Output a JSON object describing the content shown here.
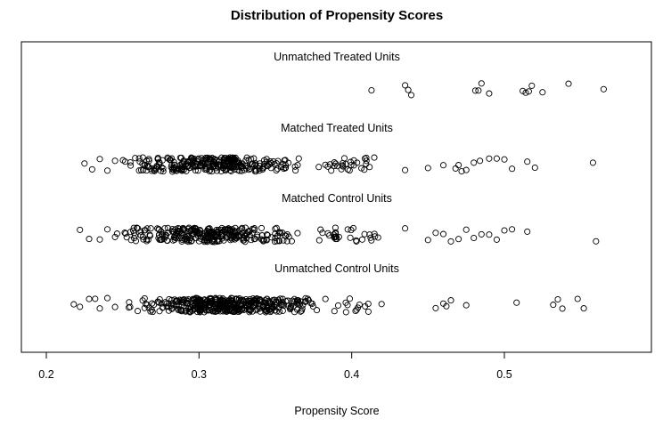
{
  "chart_data": {
    "type": "scatter",
    "title": "Distribution of Propensity Scores",
    "xlabel": "Propensity Score",
    "ylabel": "",
    "xlim": [
      0.18,
      0.6
    ],
    "x_ticks": [
      "0.2",
      "0.3",
      "0.4",
      "0.5"
    ],
    "grid": false,
    "legend": "none",
    "point_style": "open-circle",
    "series": [
      {
        "name": "Unmatched Treated Units",
        "values": [
          0.413,
          0.435,
          0.437,
          0.439,
          0.481,
          0.483,
          0.485,
          0.49,
          0.512,
          0.514,
          0.516,
          0.518,
          0.525,
          0.542,
          0.565
        ]
      },
      {
        "name": "Matched Treated Units",
        "clusters": [
          {
            "min": 0.245,
            "max": 0.37,
            "count": 290
          },
          {
            "min": 0.37,
            "max": 0.42,
            "count": 30
          }
        ],
        "values": [
          0.225,
          0.23,
          0.235,
          0.24,
          0.245,
          0.435,
          0.45,
          0.46,
          0.468,
          0.47,
          0.472,
          0.475,
          0.48,
          0.484,
          0.49,
          0.495,
          0.5,
          0.505,
          0.515,
          0.52,
          0.558
        ]
      },
      {
        "name": "Matched Control Units",
        "clusters": [
          {
            "min": 0.245,
            "max": 0.37,
            "count": 290
          },
          {
            "min": 0.37,
            "max": 0.42,
            "count": 30
          }
        ],
        "values": [
          0.222,
          0.228,
          0.235,
          0.24,
          0.245,
          0.435,
          0.45,
          0.455,
          0.46,
          0.465,
          0.47,
          0.475,
          0.48,
          0.485,
          0.49,
          0.495,
          0.5,
          0.505,
          0.515,
          0.56
        ]
      },
      {
        "name": "Unmatched Control Units",
        "clusters": [
          {
            "min": 0.25,
            "max": 0.38,
            "count": 420
          },
          {
            "min": 0.38,
            "max": 0.43,
            "count": 15
          }
        ],
        "values": [
          0.218,
          0.222,
          0.228,
          0.232,
          0.235,
          0.24,
          0.245,
          0.455,
          0.46,
          0.462,
          0.465,
          0.475,
          0.508,
          0.532,
          0.535,
          0.538,
          0.548,
          0.552
        ]
      }
    ]
  }
}
